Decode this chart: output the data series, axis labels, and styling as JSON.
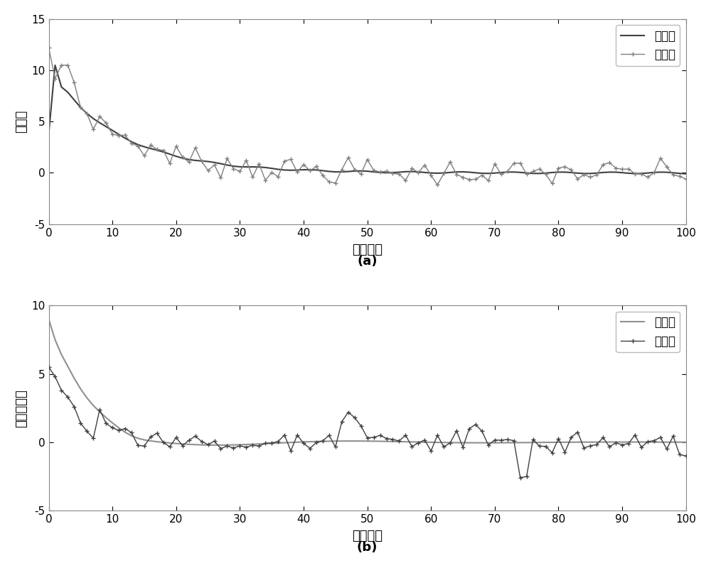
{
  "fig_width": 10.0,
  "fig_height": 8.0,
  "dpi": 100,
  "background_color": "#ffffff",
  "subplot_a": {
    "title": "(a)",
    "xlabel": "采样次数",
    "ylabel": "信噪比",
    "xlim": [
      0,
      100
    ],
    "ylim": [
      -5,
      15
    ],
    "yticks": [
      -5,
      0,
      5,
      10,
      15
    ],
    "xticks": [
      0,
      10,
      20,
      30,
      40,
      50,
      60,
      70,
      80,
      90,
      100
    ],
    "legend": [
      "真实值",
      "估计值"
    ],
    "line1_color": "#404040",
    "line2_color": "#808080",
    "line2_marker": "+"
  },
  "subplot_b": {
    "title": "(b)",
    "xlabel": "采样次数",
    "ylabel": "期望信噪比",
    "xlim": [
      0,
      100
    ],
    "ylim": [
      -5,
      10
    ],
    "yticks": [
      -5,
      0,
      5,
      10
    ],
    "xticks": [
      0,
      10,
      20,
      30,
      40,
      50,
      60,
      70,
      80,
      90,
      100
    ],
    "legend": [
      "期望值",
      "估计值"
    ],
    "line1_color": "#909090",
    "line2_color": "#404040",
    "line2_marker": "+"
  }
}
